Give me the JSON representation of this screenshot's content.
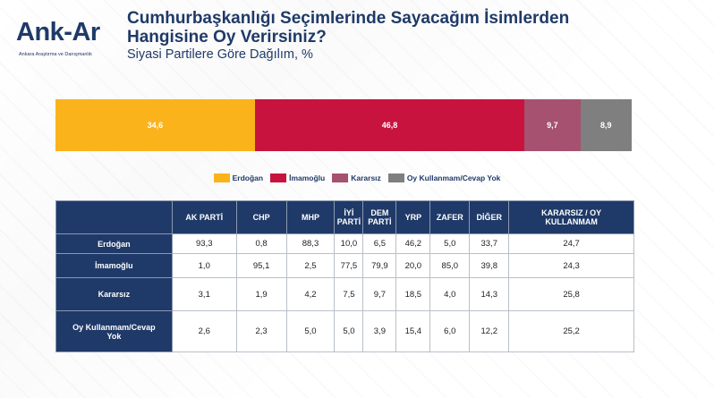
{
  "logo": {
    "text": "Ank-Ar",
    "subtitle": "Ankara Araştırma ve Danışmanlık"
  },
  "header": {
    "title_line1": "Cumhurbaşkanlığı Seçimlerinde Sayacağım İsimlerden",
    "title_line2": "Hangisine Oy Verirsiniz?",
    "subtitle": "Siyasi Partilere Göre Dağılım, %"
  },
  "chart_data": {
    "type": "bar",
    "orientation": "horizontal-stacked-100",
    "series": [
      {
        "name": "Erdoğan",
        "value": 34.6,
        "label": "34,6",
        "color": "#fbb31c"
      },
      {
        "name": "İmamoğlu",
        "value": 46.8,
        "label": "46,8",
        "color": "#c7133e"
      },
      {
        "name": "Kararsız",
        "value": 9.7,
        "label": "9,7",
        "color": "#a5516f"
      },
      {
        "name": "Oy Kullanmam/Cevap Yok",
        "value": 8.9,
        "label": "8,9",
        "color": "#7f7f7f"
      }
    ],
    "legend_position": "bottom"
  },
  "table": {
    "columns": [
      "AK PARTİ",
      "CHP",
      "MHP",
      "İYİ\nPARTİ",
      "DEM\nPARTİ",
      "YRP",
      "ZAFER",
      "DİĞER",
      "KARARSIZ / OY\nKULLANMAM"
    ],
    "rows": [
      {
        "label": "Erdoğan",
        "values": [
          "93,3",
          "0,8",
          "88,3",
          "10,0",
          "6,5",
          "46,2",
          "5,0",
          "33,7",
          "24,7"
        ]
      },
      {
        "label": "İmamoğlu",
        "values": [
          "1,0",
          "95,1",
          "2,5",
          "77,5",
          "79,9",
          "20,0",
          "85,0",
          "39,8",
          "24,3"
        ]
      },
      {
        "label": "Kararsız",
        "values": [
          "3,1",
          "1,9",
          "4,2",
          "7,5",
          "9,7",
          "18,5",
          "4,0",
          "14,3",
          "25,8"
        ]
      },
      {
        "label": "Oy Kullanmam/Cevap\nYok",
        "values": [
          "2,6",
          "2,3",
          "5,0",
          "5,0",
          "3,9",
          "15,4",
          "6,0",
          "12,2",
          "25,2"
        ]
      }
    ]
  }
}
